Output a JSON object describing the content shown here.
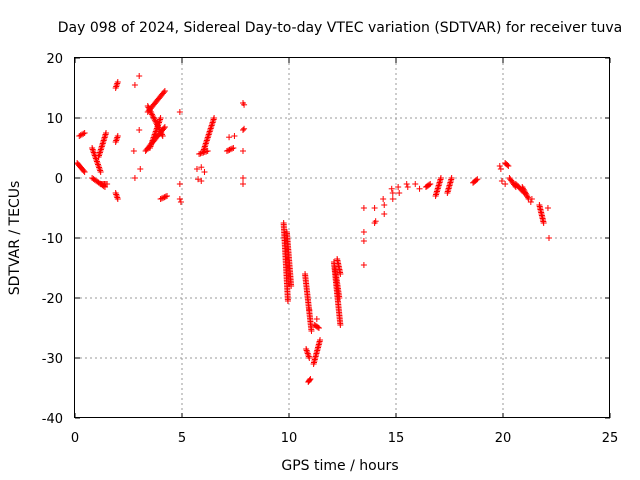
{
  "chart_data": {
    "type": "scatter",
    "title": "Day 098 of 2024, Sidereal Day-to-day VTEC variation (SDTVAR) for receiver tuva",
    "xlabel": "GPS time / hours",
    "ylabel": "SDTVAR / TECUs",
    "xlim": [
      0,
      25
    ],
    "ylim": [
      -40,
      20
    ],
    "xticks": [
      "0",
      "5",
      "10",
      "15",
      "20",
      "25"
    ],
    "yticks": [
      "20",
      "10",
      "0",
      "-10",
      "-20",
      "-30",
      "-40"
    ],
    "grid": true,
    "marker": "+",
    "series_color": "#ff0000",
    "segments": [
      [
        0.1,
        2.5,
        0.45,
        1.0
      ],
      [
        0.2,
        7.0,
        0.45,
        7.5
      ],
      [
        0.8,
        5.0,
        1.2,
        1.0
      ],
      [
        0.8,
        0.0,
        1.4,
        -1.5
      ],
      [
        1.1,
        3.5,
        1.45,
        7.5
      ],
      [
        1.2,
        -1.0,
        1.5,
        -1.0
      ],
      [
        1.9,
        15.0,
        2.0,
        16.0
      ],
      [
        1.9,
        6.0,
        2.0,
        7.0
      ],
      [
        1.9,
        -2.5,
        2.0,
        -3.5
      ],
      [
        3.3,
        4.5,
        4.2,
        8.5
      ],
      [
        3.4,
        11.0,
        4.2,
        14.5
      ],
      [
        3.4,
        12.0,
        4.1,
        7.0
      ],
      [
        3.5,
        5.0,
        4.0,
        10.0
      ],
      [
        4.0,
        -3.5,
        4.3,
        -3.0
      ],
      [
        5.8,
        4.0,
        6.2,
        4.5
      ],
      [
        6.0,
        4.5,
        6.5,
        10.0
      ],
      [
        7.1,
        4.5,
        7.4,
        5.0
      ],
      [
        9.75,
        -7.5,
        9.95,
        -20.5
      ],
      [
        9.9,
        -9.0,
        10.1,
        -18.0
      ],
      [
        10.75,
        -16.0,
        11.05,
        -25.5
      ],
      [
        10.8,
        -28.5,
        10.95,
        -30.0
      ],
      [
        10.9,
        -34.0,
        11.0,
        -33.5
      ],
      [
        11.15,
        -31.0,
        11.45,
        -27.0
      ],
      [
        11.2,
        -24.5,
        11.4,
        -25.0
      ],
      [
        12.1,
        -14.0,
        12.4,
        -24.5
      ],
      [
        12.15,
        -15.0,
        12.35,
        -20.0
      ],
      [
        12.25,
        -13.5,
        12.4,
        -16.0
      ],
      [
        16.4,
        -1.5,
        16.6,
        -1.0
      ],
      [
        16.85,
        -3.0,
        17.1,
        0.0
      ],
      [
        17.4,
        -2.5,
        17.6,
        0.0
      ],
      [
        18.6,
        -0.8,
        18.8,
        -0.2
      ],
      [
        20.1,
        2.5,
        20.25,
        2.0
      ],
      [
        20.3,
        0.0,
        20.6,
        -1.5
      ],
      [
        20.6,
        -1.0,
        21.0,
        -2.5
      ],
      [
        20.9,
        -1.5,
        21.2,
        -3.5
      ],
      [
        21.7,
        -4.5,
        21.9,
        -7.5
      ]
    ],
    "points": [
      [
        2.8,
        15.5
      ],
      [
        3.0,
        17.0
      ],
      [
        2.75,
        4.5
      ],
      [
        2.8,
        0.0
      ],
      [
        3.0,
        8.0
      ],
      [
        3.05,
        1.5
      ],
      [
        4.9,
        11.0
      ],
      [
        4.9,
        -1.0
      ],
      [
        4.9,
        -3.5
      ],
      [
        4.95,
        -4.0
      ],
      [
        5.7,
        1.5
      ],
      [
        5.9,
        1.8
      ],
      [
        5.75,
        -0.2
      ],
      [
        5.9,
        -0.5
      ],
      [
        6.05,
        1.0
      ],
      [
        7.2,
        6.8
      ],
      [
        7.45,
        7.0
      ],
      [
        7.85,
        12.5
      ],
      [
        7.9,
        12.2
      ],
      [
        7.85,
        8.0
      ],
      [
        7.9,
        8.2
      ],
      [
        7.85,
        4.5
      ],
      [
        7.85,
        0.0
      ],
      [
        7.85,
        -1.0
      ],
      [
        11.3,
        -23.5
      ],
      [
        10.95,
        -22.0
      ],
      [
        13.5,
        -5.0
      ],
      [
        13.5,
        -9.0
      ],
      [
        13.5,
        -10.5
      ],
      [
        13.5,
        -14.5
      ],
      [
        14.0,
        -5.0
      ],
      [
        14.0,
        -7.5
      ],
      [
        14.05,
        -7.2
      ],
      [
        14.4,
        -3.5
      ],
      [
        14.45,
        -4.5
      ],
      [
        14.45,
        -6.0
      ],
      [
        14.8,
        -1.8
      ],
      [
        14.85,
        -2.5
      ],
      [
        14.85,
        -3.5
      ],
      [
        15.1,
        -1.5
      ],
      [
        15.15,
        -2.5
      ],
      [
        15.5,
        -1.0
      ],
      [
        15.55,
        -1.5
      ],
      [
        15.9,
        -1.0
      ],
      [
        16.1,
        -1.8
      ],
      [
        19.85,
        2.0
      ],
      [
        19.9,
        1.5
      ],
      [
        19.95,
        -0.5
      ],
      [
        20.1,
        -1.0
      ],
      [
        21.3,
        -4.0
      ],
      [
        21.35,
        -3.5
      ],
      [
        22.1,
        -5.0
      ],
      [
        22.15,
        -10.0
      ]
    ]
  }
}
